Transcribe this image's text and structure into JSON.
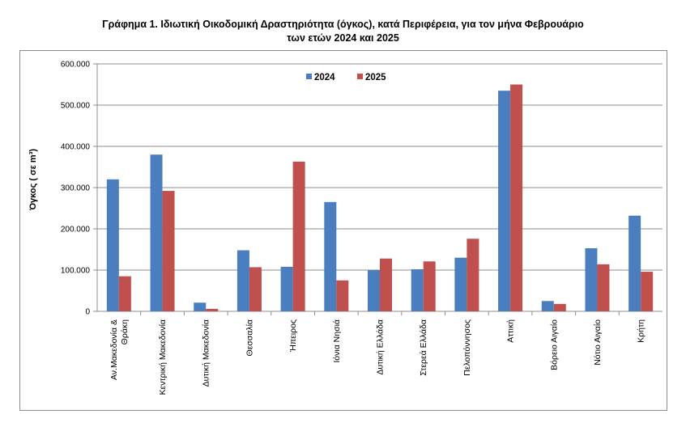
{
  "title_line1": "Γράφημα 1.  Ιδιωτική Οικοδομική Δραστηριότητα (όγκος), κατά Περιφέρεια, για τον μήνα Φεβρουάριο",
  "title_line2": "των ετών 2024 και 2025",
  "chart_data": {
    "type": "bar",
    "title": "Γράφημα 1.  Ιδιωτική Οικοδομική Δραστηριότητα (όγκος), κατά Περιφέρεια, για τον μήνα Φεβρουάριο των ετών 2024 και 2025",
    "ylabel": "Όγκος ( σε m³)",
    "xlabel": "",
    "ylim": [
      0,
      600000
    ],
    "yticks": [
      0,
      100000,
      200000,
      300000,
      400000,
      500000,
      600000
    ],
    "ytick_labels": [
      "0",
      "100.000",
      "200.000",
      "300.000",
      "400.000",
      "500.000",
      "600.000"
    ],
    "categories": [
      [
        "Αν.Μακεδονία &",
        "Θράκη"
      ],
      [
        "Κεντρική Μακεδονία"
      ],
      [
        "Δυτική Μακεδονία"
      ],
      [
        "Θεσσαλία"
      ],
      [
        "Ήπειρος"
      ],
      [
        "Ιόνια Νησιά"
      ],
      [
        "Δυτική Ελλάδα"
      ],
      [
        "Στερεά Ελλάδα"
      ],
      [
        "Πελοπόννησος"
      ],
      [
        "Αττική"
      ],
      [
        "Βόρειο Αιγαίο"
      ],
      [
        "Νότιο Αιγαίο"
      ],
      [
        "Κρήτη"
      ]
    ],
    "series": [
      {
        "name": "2024",
        "color": "#4a7ebf",
        "values": [
          320000,
          380000,
          21000,
          148000,
          108000,
          265000,
          100000,
          102000,
          130000,
          535000,
          25000,
          153000,
          232000
        ]
      },
      {
        "name": "2025",
        "color": "#c0504d",
        "values": [
          85000,
          292000,
          6000,
          107000,
          363000,
          75000,
          128000,
          121000,
          176000,
          550000,
          18000,
          114000,
          96000
        ]
      }
    ],
    "grid": true,
    "legend": "top-center"
  }
}
